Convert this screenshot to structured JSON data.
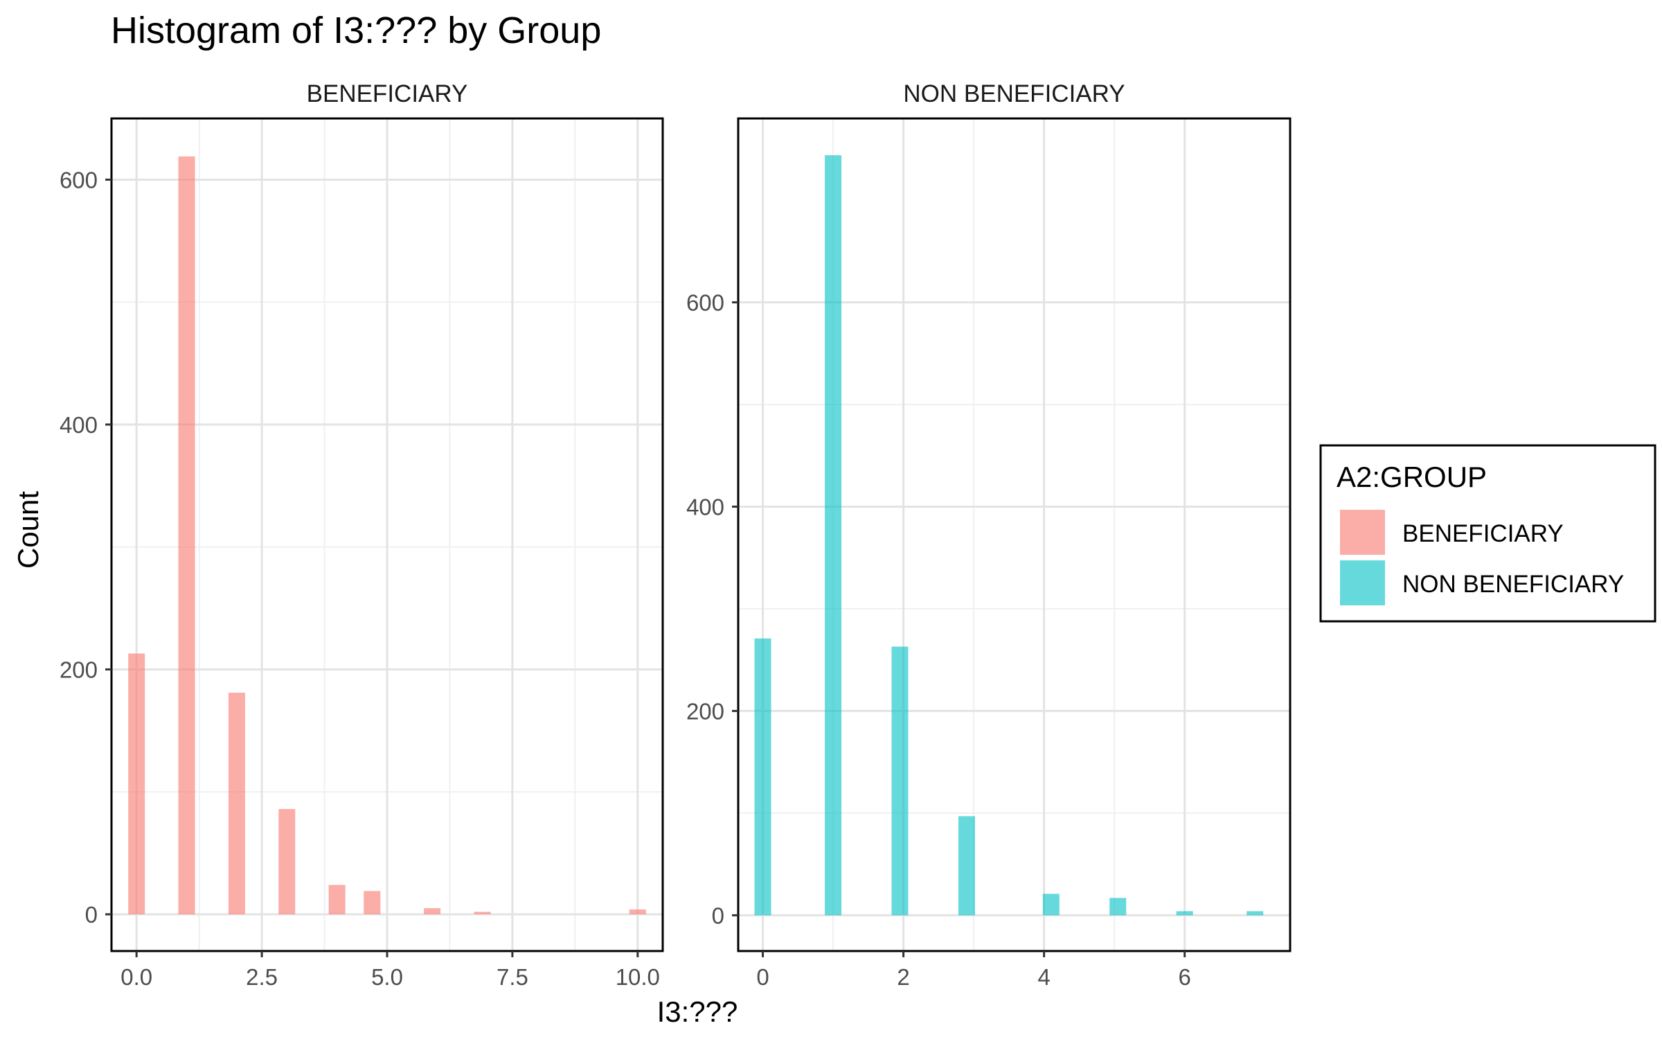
{
  "chart_data": {
    "type": "bar",
    "title": "Histogram of I3:??? by Group",
    "xlabel": "I3:???",
    "ylabel": "Count",
    "grid": true,
    "legend": {
      "title": "A2:GROUP",
      "position": "right",
      "entries": [
        {
          "name": "BENEFICIARY",
          "color": "#F8766D"
        },
        {
          "name": "NON BENEFICIARY",
          "color": "#00BFC4"
        }
      ]
    },
    "panels": [
      {
        "strip": "BENEFICIARY",
        "color": "#F8766D",
        "xlim": [
          -0.5,
          10.5
        ],
        "ylim": [
          -30,
          650
        ],
        "xticks": [
          0,
          2.5,
          5,
          7.5,
          10
        ],
        "xtick_labels": [
          "0.0",
          "2.5",
          "5.0",
          "7.5",
          "10.0"
        ],
        "yticks": [
          0,
          200,
          400,
          600
        ],
        "ytick_labels": [
          "0",
          "200",
          "400",
          "600"
        ],
        "bars": [
          {
            "x": 0,
            "count": 213
          },
          {
            "x": 1,
            "count": 619
          },
          {
            "x": 2,
            "count": 181
          },
          {
            "x": 3,
            "count": 86
          },
          {
            "x": 4,
            "count": 24
          },
          {
            "x": 4.7,
            "count": 19
          },
          {
            "x": 5.9,
            "count": 5
          },
          {
            "x": 6.9,
            "count": 2
          },
          {
            "x": 10,
            "count": 4
          }
        ]
      },
      {
        "strip": "NON BENEFICIARY",
        "color": "#00BFC4",
        "xlim": [
          -0.35,
          7.5
        ],
        "ylim": [
          -35,
          780
        ],
        "xticks": [
          0,
          2,
          4,
          6
        ],
        "xtick_labels": [
          "0",
          "2",
          "4",
          "6"
        ],
        "yticks": [
          0,
          200,
          400,
          600
        ],
        "ytick_labels": [
          "0",
          "200",
          "400",
          "600"
        ],
        "bars": [
          {
            "x": 0,
            "count": 271
          },
          {
            "x": 1,
            "count": 744
          },
          {
            "x": 1.95,
            "count": 263
          },
          {
            "x": 2.9,
            "count": 97
          },
          {
            "x": 4.1,
            "count": 21
          },
          {
            "x": 5.05,
            "count": 17
          },
          {
            "x": 6,
            "count": 4
          },
          {
            "x": 7,
            "count": 4
          }
        ]
      }
    ]
  }
}
